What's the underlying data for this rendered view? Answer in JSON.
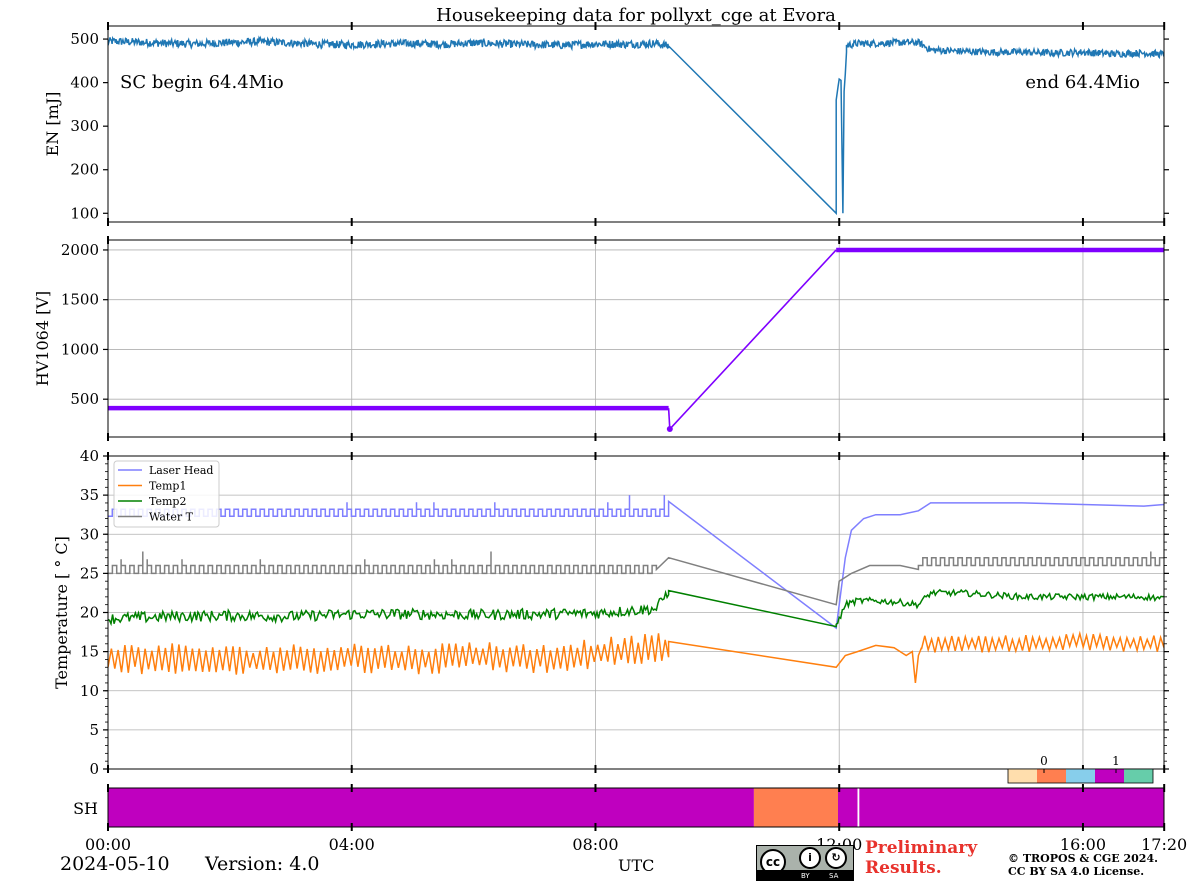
{
  "colors": {
    "energy": "#1f77b4",
    "hv": "#7f00ff",
    "laser_head": "#7f7fff",
    "temp1": "#ff7f0e",
    "temp2": "#008000",
    "water": "#808080",
    "sh_magenta": "#bf00bf",
    "sh_orange": "#ff7f50",
    "cbar": [
      "#ffdead",
      "#ff7f50",
      "#87ceeb",
      "#bf00bf",
      "#66cdaa"
    ],
    "prelim": "#e8322c",
    "grid": "#b0b0b0"
  },
  "footer": {
    "date": "2024-05-10",
    "version": "Version: 4.0",
    "preliminary": "Preliminary Results.",
    "copyright_line1": "© TROPOS & CGE 2024.",
    "copyright_line2": "CC BY SA 4.0 License.",
    "cc_logo": "cc",
    "cc_by": "BY",
    "cc_sa": "SA"
  },
  "chart_data": [
    {
      "id": "energy",
      "type": "line",
      "title": "Housekeeping data for pollyxt_cge at Evora",
      "ylabel": "EN [mJ]",
      "ylim": [
        80,
        530
      ],
      "yticks": [
        100,
        200,
        300,
        400,
        500
      ],
      "annotations": [
        "SC begin 64.4Mio",
        "end 64.4Mio"
      ],
      "segments": [
        {
          "hours": [
            0,
            0.5,
            1,
            1.5,
            2,
            2.5,
            3,
            3.5,
            4,
            4.5,
            5,
            5.5,
            6,
            6.5,
            7,
            7.5,
            8,
            8.5,
            9.0,
            9.2
          ],
          "values": [
            495,
            493,
            490,
            489,
            492,
            494,
            491,
            488,
            487,
            489,
            490,
            488,
            491,
            489,
            487,
            486,
            489,
            488,
            490,
            484
          ],
          "noise": 9
        },
        {
          "hours": [
            9.2,
            11.95
          ],
          "values": [
            484,
            100
          ],
          "noise": 0
        },
        {
          "hours": [
            11.95,
            11.98,
            12.0,
            12.03,
            12.06,
            12.08,
            12.1,
            12.12
          ],
          "values": [
            360,
            390,
            408,
            405,
            100,
            380,
            420,
            470
          ],
          "noise": 0
        },
        {
          "hours": [
            12.12,
            12.3,
            12.6,
            13.0,
            13.3,
            13.5,
            14,
            14.5,
            15,
            15.5,
            16,
            16.5,
            17,
            17.33
          ],
          "values": [
            485,
            490,
            490,
            492,
            492,
            475,
            472,
            470,
            470,
            468,
            470,
            466,
            468,
            465
          ],
          "noise": 8
        }
      ]
    },
    {
      "id": "hv",
      "type": "scatter",
      "ylabel": "HV1064 [V]",
      "ylim": [
        120,
        2100
      ],
      "yticks": [
        500,
        1000,
        1500,
        2000
      ],
      "points": [
        {
          "hours": [
            0,
            9.2
          ],
          "value": 410,
          "style": "dense-markers"
        },
        {
          "hours": [
            9.2,
            9.22
          ],
          "values": [
            410,
            200
          ],
          "style": "line"
        },
        {
          "hours": [
            9.22,
            11.95
          ],
          "values": [
            200,
            2000
          ],
          "style": "line"
        },
        {
          "hours": [
            11.95,
            17.33
          ],
          "value": 2000,
          "style": "dense-markers"
        }
      ]
    },
    {
      "id": "temperature",
      "type": "line",
      "ylabel": "Temperature [$^\\circ C$]",
      "ylim": [
        0,
        40
      ],
      "yticks": [
        0,
        5,
        10,
        15,
        20,
        25,
        30,
        35,
        40
      ],
      "legend": [
        "Laser Head",
        "Temp1",
        "Temp2",
        "Water T"
      ],
      "series": [
        {
          "name": "Laser Head",
          "segments": [
            {
              "hours": [
                0,
                9.2
              ],
              "base": 32.3,
              "high": 33.2,
              "style": "square"
            },
            {
              "hours": [
                9.2,
                11.95
              ],
              "values": [
                34.2,
                18.0
              ],
              "style": "line"
            },
            {
              "hours": [
                11.95,
                12.1,
                12.2,
                12.4,
                12.6,
                13.0,
                13.3,
                13.5,
                14,
                15,
                16,
                17,
                17.33
              ],
              "values": [
                18.0,
                27.0,
                30.5,
                32.0,
                32.5,
                32.5,
                33.0,
                34.0,
                34.0,
                34.0,
                33.8,
                33.6,
                33.8
              ],
              "style": "line"
            }
          ]
        },
        {
          "name": "Temp1",
          "segments": [
            {
              "hours": [
                0,
                1,
                2,
                3,
                4,
                5,
                6,
                7,
                8,
                9.2
              ],
              "values": [
                14.0,
                14.2,
                13.8,
                14.0,
                14.3,
                13.9,
                14.5,
                14.0,
                14.8,
                15.5
              ],
              "noise": 1.8,
              "style": "oscillate"
            },
            {
              "hours": [
                9.2,
                11.95
              ],
              "values": [
                16.3,
                13.0
              ],
              "style": "line"
            },
            {
              "hours": [
                11.95,
                12.1,
                12.3,
                12.6,
                12.9,
                13.1,
                13.2,
                13.25,
                13.3,
                13.35
              ],
              "values": [
                13.0,
                14.5,
                15.0,
                15.8,
                15.5,
                14.5,
                15.0,
                11.0,
                14.5,
                15.5
              ],
              "style": "line"
            },
            {
              "hours": [
                13.35,
                14,
                15,
                16,
                17,
                17.33
              ],
              "values": [
                16.0,
                16.0,
                16.0,
                16.3,
                16.0,
                16.0
              ],
              "noise": 1.0,
              "style": "oscillate"
            }
          ]
        },
        {
          "name": "Temp2",
          "segments": [
            {
              "hours": [
                0,
                1,
                2,
                3,
                4,
                5,
                6,
                7,
                8,
                9.0,
                9.2
              ],
              "values": [
                19.2,
                19.5,
                19.6,
                19.5,
                19.8,
                19.8,
                19.7,
                19.8,
                19.9,
                20.5,
                22.8
              ],
              "noise": 0.7,
              "style": "noisy"
            },
            {
              "hours": [
                9.2,
                11.95
              ],
              "values": [
                22.8,
                18.2
              ],
              "style": "line"
            },
            {
              "hours": [
                11.95,
                12.1,
                12.3,
                12.6,
                13.0,
                13.3,
                13.5,
                14,
                15,
                16,
                17,
                17.33
              ],
              "values": [
                18.2,
                21.0,
                21.5,
                21.5,
                21.3,
                21.0,
                22.5,
                22.5,
                22.0,
                22.0,
                22.0,
                21.8
              ],
              "noise": 0.4,
              "style": "noisy"
            }
          ]
        },
        {
          "name": "Water T",
          "segments": [
            {
              "hours": [
                0,
                9.0
              ],
              "base": 25.0,
              "high": 26.0,
              "style": "square"
            },
            {
              "hours": [
                9.0,
                9.2
              ],
              "values": [
                25.5,
                27.0
              ],
              "style": "line"
            },
            {
              "hours": [
                9.2,
                11.95
              ],
              "values": [
                27.0,
                21.0
              ],
              "style": "line"
            },
            {
              "hours": [
                11.95,
                12.0,
                12.2,
                12.5,
                13.0,
                13.3
              ],
              "values": [
                21.0,
                24.0,
                25.0,
                26.0,
                26.0,
                25.5
              ],
              "style": "line"
            },
            {
              "hours": [
                13.3,
                17.33
              ],
              "base": 26.0,
              "high": 27.0,
              "style": "square"
            }
          ]
        }
      ]
    },
    {
      "id": "sh",
      "type": "heatmap",
      "ylabel": "SH",
      "xlabel": "UTC",
      "xlim_hours": [
        0,
        17.33
      ],
      "xticks": [
        "00:00",
        "04:00",
        "08:00",
        "12:00",
        "16:00",
        "17:20"
      ],
      "xtick_hours": [
        0,
        4,
        8,
        12,
        16,
        17.333
      ],
      "blocks": [
        {
          "from": 0,
          "to": 10.6,
          "state": "magenta"
        },
        {
          "from": 10.6,
          "to": 11.98,
          "state": "orange"
        },
        {
          "from": 11.98,
          "to": 12.3,
          "state": "magenta"
        },
        {
          "from": 12.3,
          "to": 12.33,
          "state": "white"
        },
        {
          "from": 12.33,
          "to": 17.33,
          "state": "magenta"
        }
      ],
      "colorbar_ticks": [
        "0",
        "1"
      ]
    }
  ]
}
